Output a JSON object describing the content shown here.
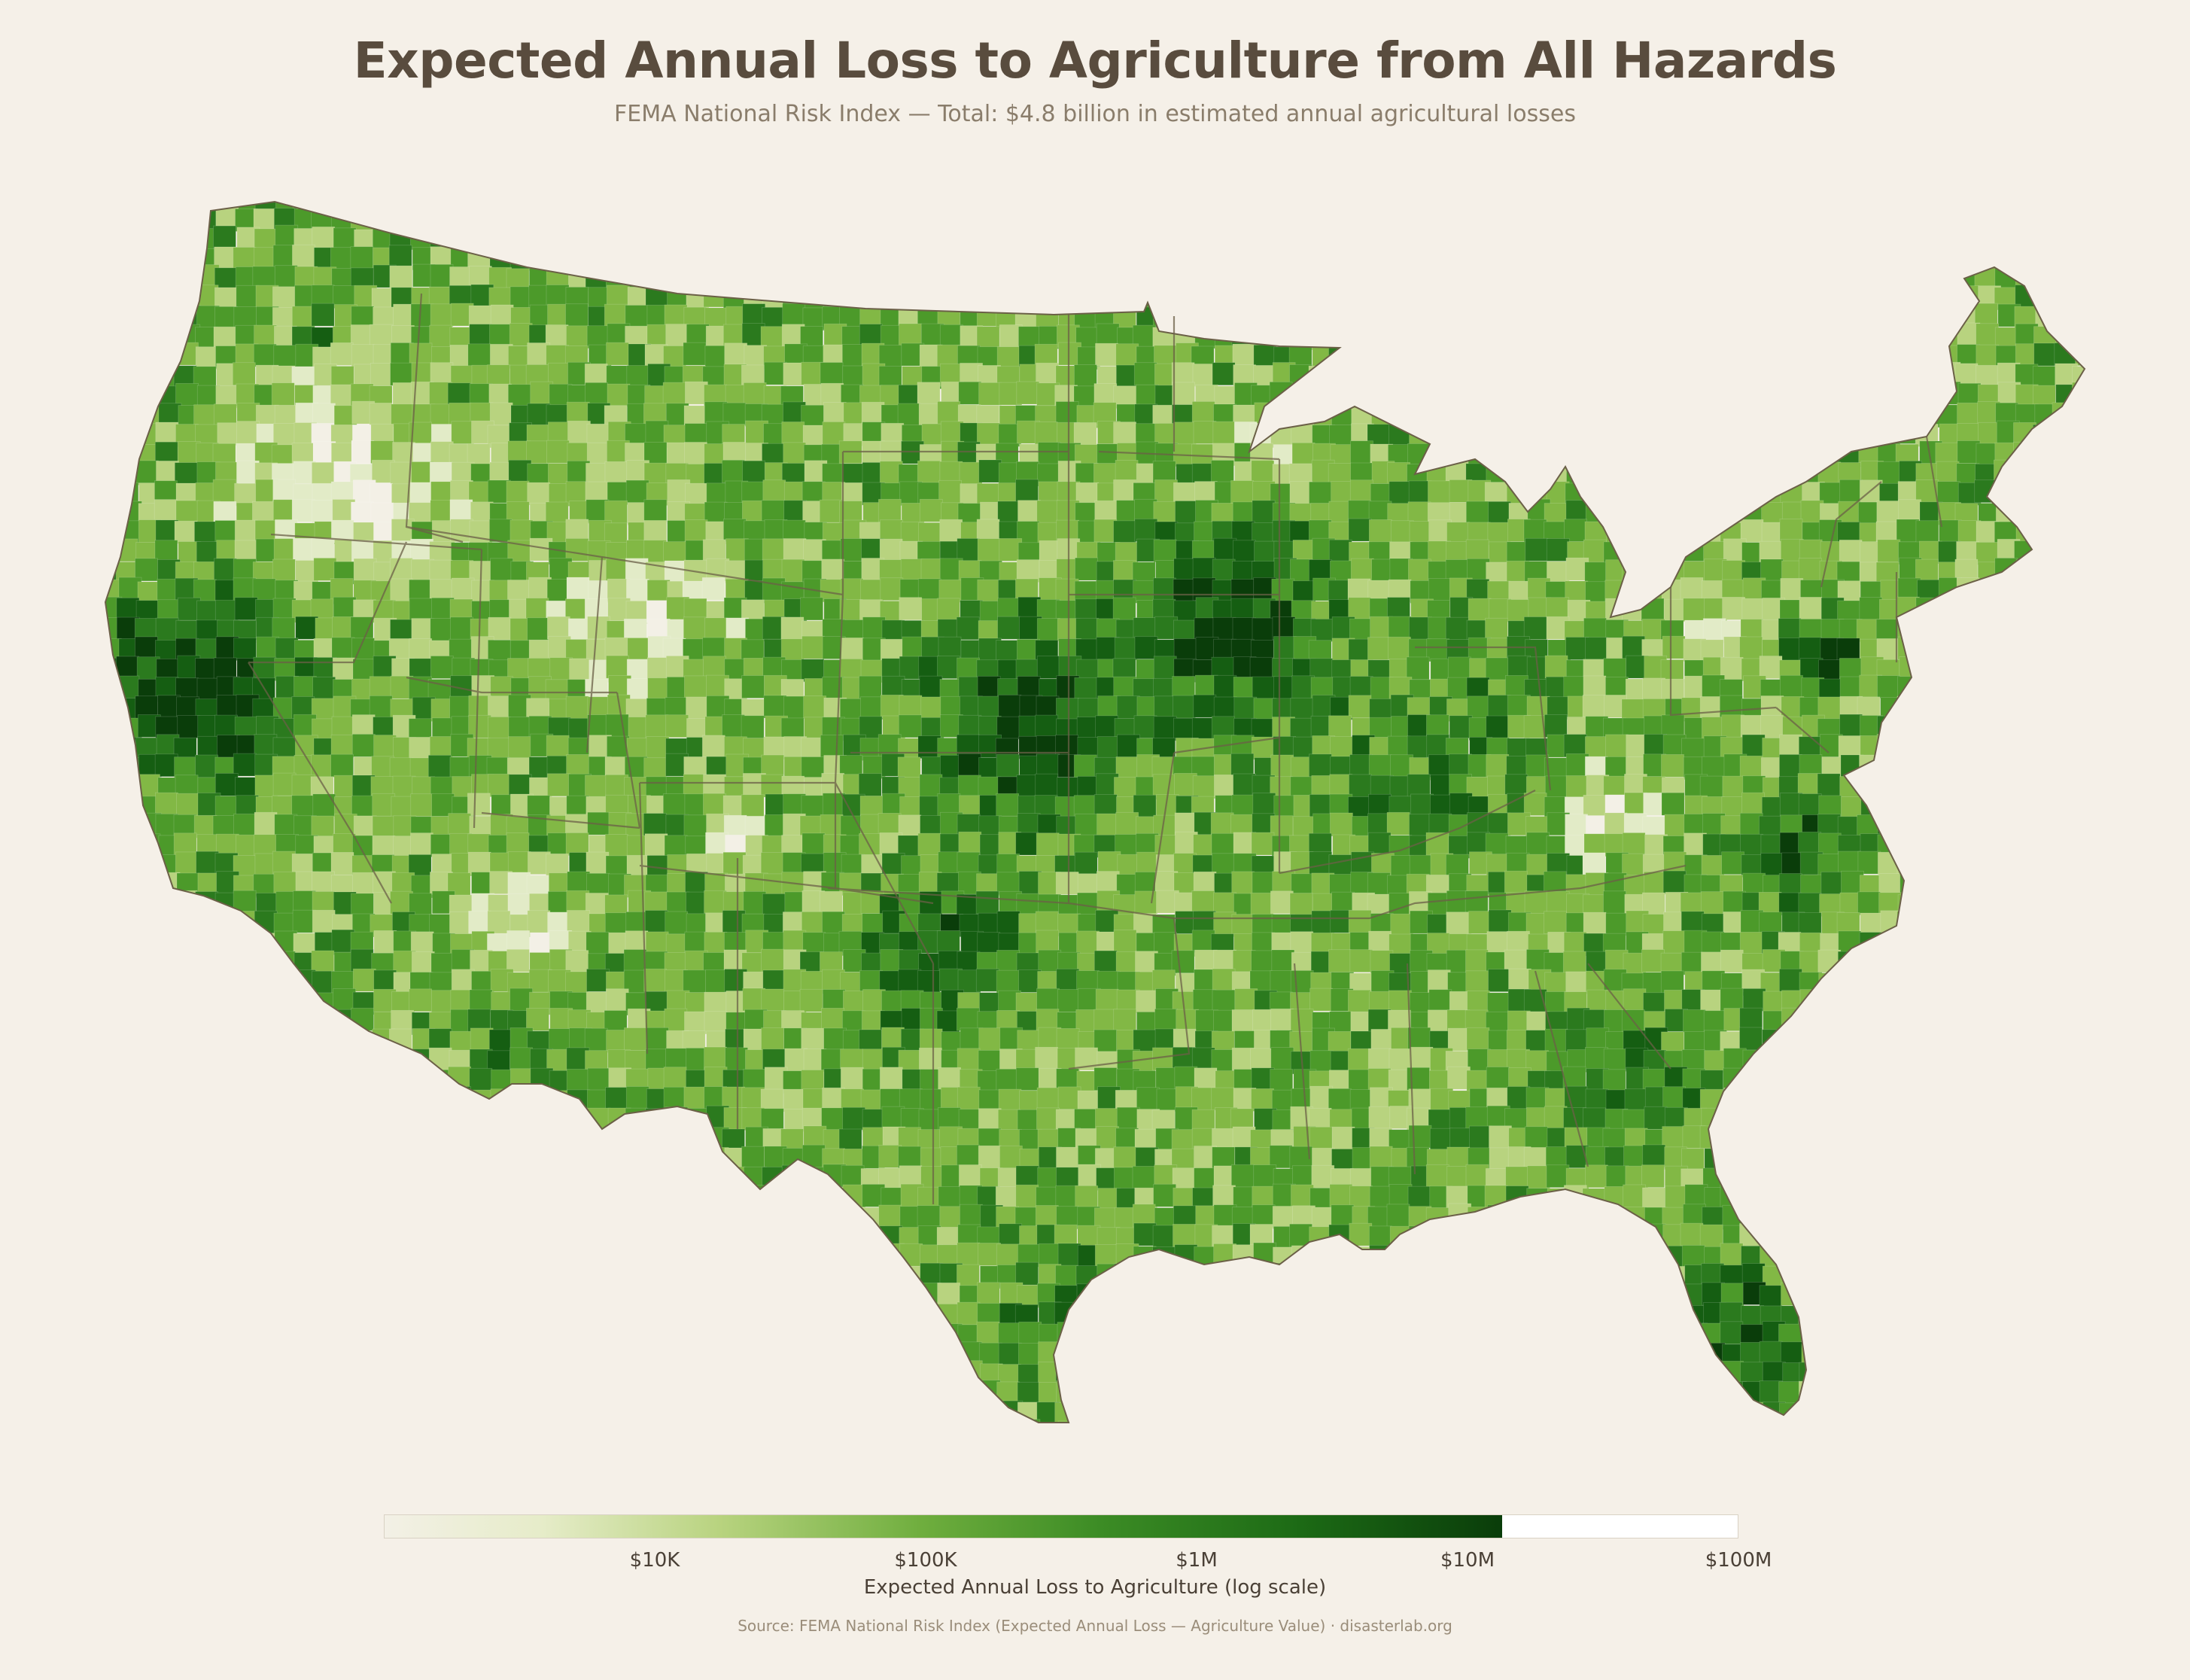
{
  "title": "Expected Annual Loss to Agriculture from All Hazards",
  "subtitle": "FEMA National Risk Index — Total: $4.8 billion in estimated annual agricultural losses",
  "legend": {
    "title": "Expected Annual Loss to Agriculture (log scale)",
    "ticks": [
      "$10K",
      "$100K",
      "$1M",
      "$10M",
      "$100M"
    ],
    "scale": "log",
    "range_usd": [
      1000,
      100000000
    ],
    "colors": [
      "#f3f0e6",
      "#e2ebc7",
      "#b8d37f",
      "#82b845",
      "#4c9a2a",
      "#2b7a1e",
      "#155e12",
      "#0a3d0a"
    ],
    "no_data_color": "#ffffff"
  },
  "map": {
    "region": "Contiguous United States",
    "unit": "county",
    "state_border_color": "#6b6047"
  },
  "source": "Source: FEMA National Risk Index (Expected Annual Loss — Agriculture Value)  ·  disasterlab.org"
}
